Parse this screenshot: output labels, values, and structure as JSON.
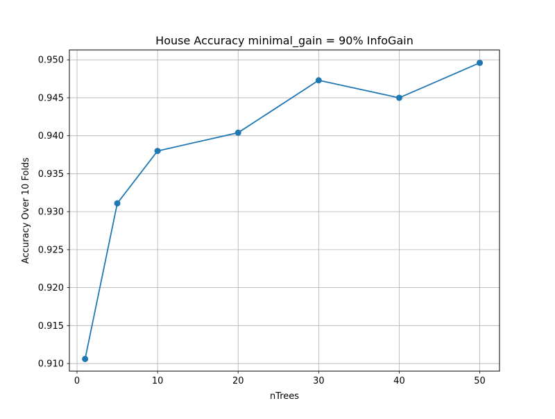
{
  "chart_data": {
    "type": "line",
    "title": "House Accuracy minimal_gain = 90% InfoGain",
    "xlabel": "nTrees",
    "ylabel": "Accuracy Over 10 Folds",
    "xlim": [
      -0.95,
      52.45
    ],
    "ylim": [
      0.909,
      0.9513
    ],
    "xticks": [
      0,
      10,
      20,
      30,
      40,
      50
    ],
    "yticks": [
      0.91,
      0.915,
      0.92,
      0.925,
      0.93,
      0.935,
      0.94,
      0.945,
      0.95
    ],
    "xtick_labels": [
      "0",
      "10",
      "20",
      "30",
      "40",
      "50"
    ],
    "ytick_labels": [
      "0.910",
      "0.915",
      "0.920",
      "0.925",
      "0.930",
      "0.935",
      "0.940",
      "0.945",
      "0.950"
    ],
    "grid": true,
    "legend": "none",
    "series": [
      {
        "color": "#1f77b4",
        "marker": "circle",
        "x": [
          1,
          5,
          10,
          20,
          30,
          40,
          50
        ],
        "y": [
          0.9106,
          0.9311,
          0.938,
          0.9404,
          0.9473,
          0.945,
          0.9496
        ]
      }
    ]
  }
}
